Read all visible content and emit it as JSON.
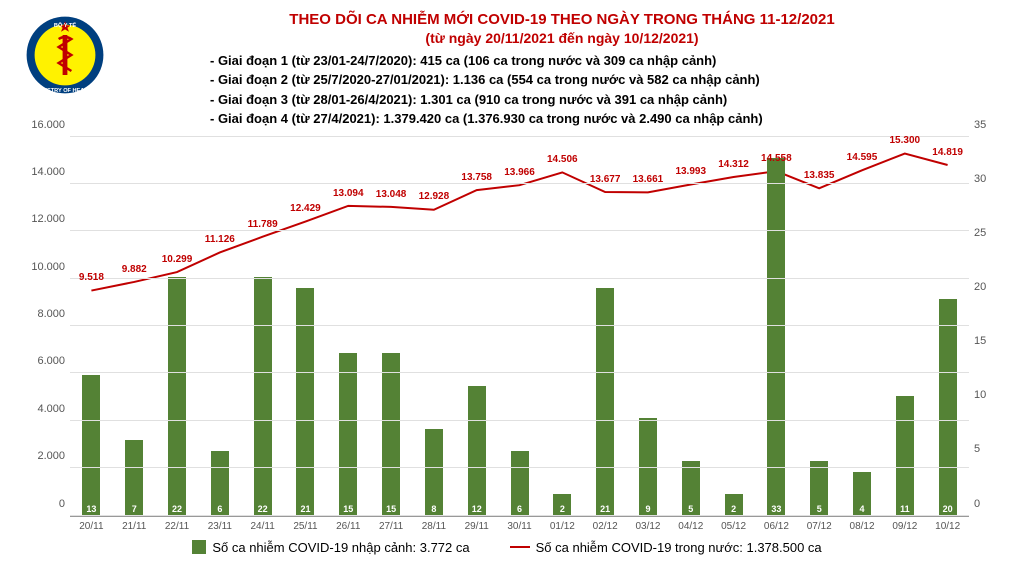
{
  "title_line1": "THEO DÕI CA NHIỄM MỚI COVID-19 THEO NGÀY TRONG THÁNG 11-12/2021",
  "title_line2": "(từ ngày 20/11/2021 đến ngày 10/12/2021)",
  "phases": [
    "- Giai đoạn 1 (từ 23/01-24/7/2020): 415 ca (106 ca trong nước và 309 ca nhập cảnh)",
    "- Giai đoạn 2 (từ 25/7/2020-27/01/2021): 1.136 ca (554 ca trong nước và 582 ca nhập cảnh)",
    "- Giai đoạn 3 (từ 28/01-26/4/2021): 1.301 ca (910 ca trong nước và 391 ca nhập cảnh)",
    "- Giai đoạn 4 (từ 27/4/2021): 1.379.420 ca (1.376.930 ca trong nước và 2.490 ca nhập cảnh)"
  ],
  "chart": {
    "type": "combo-bar-line",
    "categories": [
      "20/11",
      "21/11",
      "22/11",
      "23/11",
      "24/11",
      "25/11",
      "26/11",
      "27/11",
      "28/11",
      "29/11",
      "30/11",
      "01/12",
      "02/12",
      "03/12",
      "04/12",
      "05/12",
      "06/12",
      "07/12",
      "08/12",
      "09/12",
      "10/12"
    ],
    "bar_values": [
      13,
      7,
      22,
      6,
      22,
      21,
      15,
      15,
      8,
      12,
      6,
      2,
      21,
      9,
      5,
      2,
      33,
      5,
      4,
      11,
      20
    ],
    "bar_color": "#548235",
    "bar_ymax": 35,
    "line_values": [
      9518,
      9882,
      10299,
      11126,
      11789,
      12429,
      13094,
      13048,
      12928,
      13758,
      13966,
      14506,
      13677,
      13661,
      13993,
      14312,
      14558,
      13835,
      14595,
      15300,
      14819
    ],
    "line_labels": [
      "9.518",
      "9.882",
      "10.299",
      "11.126",
      "11.789",
      "12.429",
      "13.094",
      "13.048",
      "12.928",
      "13.758",
      "13.966",
      "14.506",
      "13.677",
      "13.661",
      "13.993",
      "14.312",
      "14.558",
      "13.835",
      "14.595",
      "15.300",
      "14.819"
    ],
    "line_color": "#c00000",
    "line_ymax": 16000,
    "left_ticks": [
      0,
      2000,
      4000,
      6000,
      8000,
      10000,
      12000,
      14000,
      16000
    ],
    "left_tick_labels": [
      "0",
      "2.000",
      "4.000",
      "6.000",
      "8.000",
      "10.000",
      "12.000",
      "14.000",
      "16.000"
    ],
    "right_ticks": [
      0,
      5,
      10,
      15,
      20,
      25,
      30,
      35
    ],
    "grid_color": "#e0e0e0",
    "background_color": "#ffffff",
    "label_fontsize": 11
  },
  "legend": {
    "bar_label": "Số ca nhiễm COVID-19 nhập cảnh: 3.772 ca",
    "line_label": "Số ca nhiễm COVID-19 trong nước: 1.378.500 ca"
  },
  "logo_colors": {
    "outer": "#003f7f",
    "inner_bg": "#fff200",
    "snake": "#c00000",
    "star": "#c00000"
  }
}
